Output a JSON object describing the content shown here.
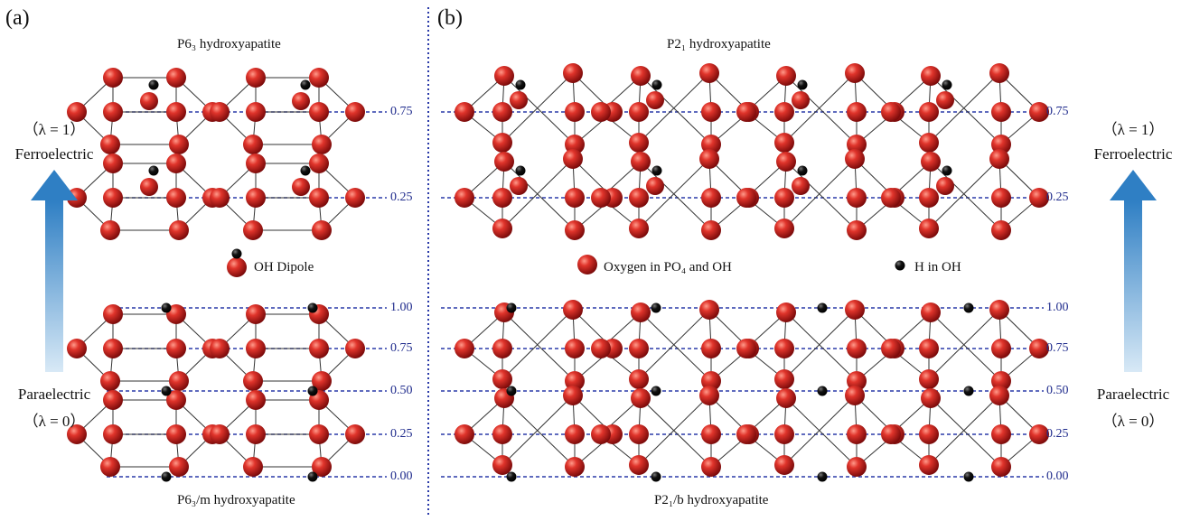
{
  "panel_a": {
    "label": "(a)",
    "top_title": "P6₃ hydroxyapatite",
    "bottom_title": "P6₃/m hydroxyapatite",
    "legend": "OH Dipole",
    "top_levels": [
      "0.75",
      "0.25"
    ],
    "bottom_levels": [
      "1.00",
      "0.75",
      "0.50",
      "0.25",
      "0.00"
    ]
  },
  "panel_b": {
    "label": "(b)",
    "top_title": "P2₁ hydroxyapatite",
    "bottom_title": "P2₁/b hydroxyapatite",
    "legend_oxygen": "Oxygen in PO₄ and  OH",
    "legend_h": "H in OH",
    "top_levels": [
      "0.75",
      "0.25"
    ],
    "bottom_levels": [
      "1.00",
      "0.75",
      "0.50",
      "0.25",
      "0.00"
    ]
  },
  "left_side": {
    "top_lambda": "（λ = 1）",
    "top_label": "Ferroelectric",
    "bottom_label": "Paraelectric",
    "bottom_lambda": "（λ = 0）"
  },
  "right_side": {
    "top_lambda": "（λ = 1）",
    "top_label": "Ferroelectric",
    "bottom_label": "Paraelectric",
    "bottom_lambda": "（λ = 0）"
  },
  "colors": {
    "oxygen": "#cc1f1f",
    "hydrogen": "#111111",
    "level_line": "#2a3aa8",
    "divider": "#2a3aa8",
    "arrow": "#3a86c8"
  }
}
